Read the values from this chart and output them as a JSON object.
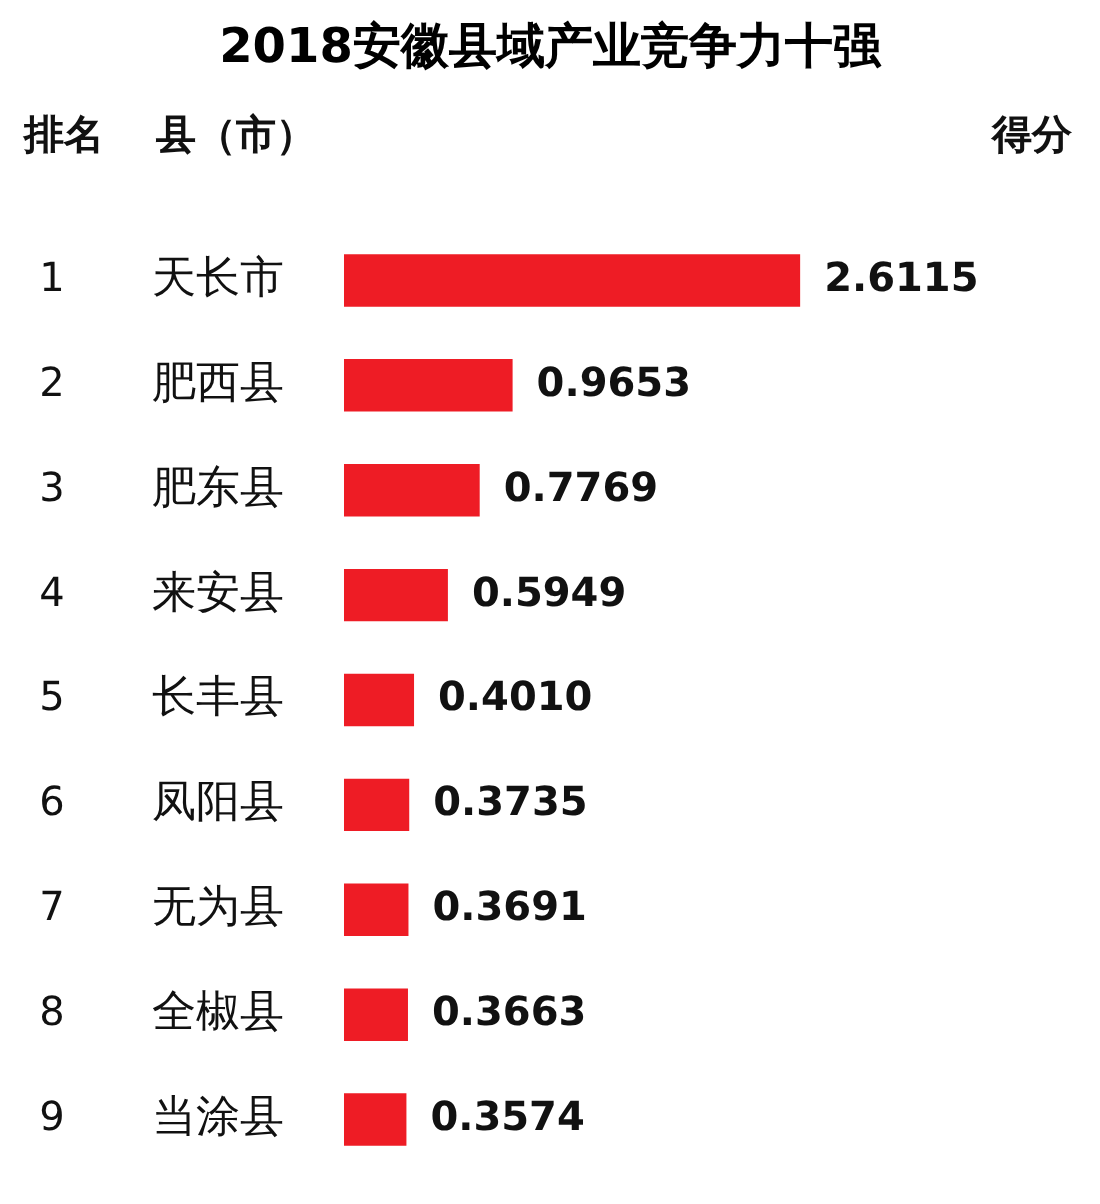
{
  "chart_data": {
    "type": "bar",
    "orientation": "horizontal",
    "title": "2018安徽县域产业竞争力十强",
    "categories": [
      "天长市",
      "肥西县",
      "肥东县",
      "来安县",
      "长丰县",
      "凤阳县",
      "无为县",
      "全椒县",
      "当涂县"
    ],
    "values": [
      2.6115,
      0.9653,
      0.7769,
      0.5949,
      0.401,
      0.3735,
      0.3691,
      0.3663,
      0.3574
    ],
    "value_labels": [
      "2.6115",
      "0.9653",
      "0.7769",
      "0.5949",
      "0.4010",
      "0.3735",
      "0.3691",
      "0.3663",
      "0.3574"
    ],
    "color": "#ee1c25",
    "annotations": [
      "排名",
      "县（市）",
      "得分",
      "1",
      "2",
      "3",
      "4",
      "5",
      "6",
      "7",
      "8",
      "9"
    ]
  }
}
